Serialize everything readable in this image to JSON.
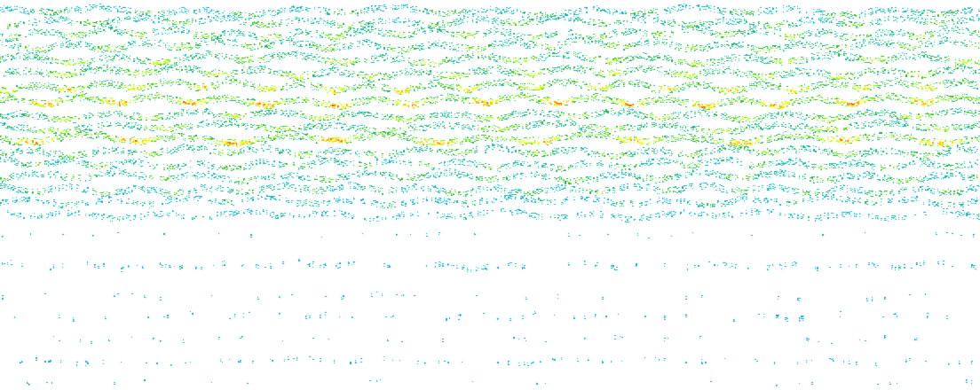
{
  "chart_data": {
    "type": "heatmap",
    "title": "",
    "xlabel": "",
    "ylabel": "",
    "axes_visible": false,
    "grid": false,
    "legend": "none",
    "colormap": [
      "#1f77b4",
      "#17becf",
      "#2ca02c",
      "#7fff00",
      "#ffff00",
      "#ff7f00",
      "#d62728"
    ],
    "background": "#ffffff",
    "x_range": [
      0,
      1
    ],
    "y_range": [
      0,
      1
    ],
    "bands": [
      {
        "center": 0.028,
        "spread": 0.012,
        "intensity": 0.42,
        "density": 0.78
      },
      {
        "center": 0.055,
        "spread": 0.012,
        "intensity": 0.5,
        "density": 0.8
      },
      {
        "center": 0.085,
        "spread": 0.013,
        "intensity": 0.58,
        "density": 0.82
      },
      {
        "center": 0.115,
        "spread": 0.013,
        "intensity": 0.55,
        "density": 0.82
      },
      {
        "center": 0.15,
        "spread": 0.013,
        "intensity": 0.62,
        "density": 0.84
      },
      {
        "center": 0.185,
        "spread": 0.013,
        "intensity": 0.66,
        "density": 0.85
      },
      {
        "center": 0.22,
        "spread": 0.013,
        "intensity": 0.78,
        "density": 0.88
      },
      {
        "center": 0.258,
        "spread": 0.013,
        "intensity": 0.94,
        "density": 0.92
      },
      {
        "center": 0.295,
        "spread": 0.012,
        "intensity": 0.62,
        "density": 0.84
      },
      {
        "center": 0.325,
        "spread": 0.012,
        "intensity": 0.6,
        "density": 0.84
      },
      {
        "center": 0.355,
        "spread": 0.013,
        "intensity": 0.9,
        "density": 0.9
      },
      {
        "center": 0.388,
        "spread": 0.012,
        "intensity": 0.55,
        "density": 0.8
      },
      {
        "center": 0.42,
        "spread": 0.012,
        "intensity": 0.48,
        "density": 0.74
      },
      {
        "center": 0.452,
        "spread": 0.012,
        "intensity": 0.5,
        "density": 0.74
      },
      {
        "center": 0.485,
        "spread": 0.012,
        "intensity": 0.45,
        "density": 0.7
      },
      {
        "center": 0.515,
        "spread": 0.011,
        "intensity": 0.36,
        "density": 0.62
      },
      {
        "center": 0.55,
        "spread": 0.011,
        "intensity": 0.3,
        "density": 0.58
      },
      {
        "center": 0.6,
        "spread": 0.006,
        "intensity": 0.1,
        "density": 0.06
      },
      {
        "center": 0.68,
        "spread": 0.01,
        "intensity": 0.25,
        "density": 0.26
      },
      {
        "center": 0.76,
        "spread": 0.008,
        "intensity": 0.14,
        "density": 0.07
      },
      {
        "center": 0.81,
        "spread": 0.01,
        "intensity": 0.18,
        "density": 0.12
      },
      {
        "center": 0.87,
        "spread": 0.008,
        "intensity": 0.12,
        "density": 0.06
      },
      {
        "center": 0.925,
        "spread": 0.008,
        "intensity": 0.18,
        "density": 0.16
      },
      {
        "center": 0.98,
        "spread": 0.006,
        "intensity": 0.1,
        "density": 0.05
      }
    ]
  }
}
